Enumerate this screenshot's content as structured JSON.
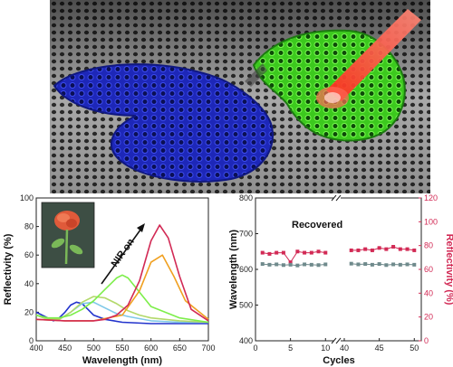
{
  "colors": {
    "blue_wing": "#2a34d6",
    "green_wing": "#49e82b",
    "laser": "#ff3b2f",
    "substrate": "#8d8d8d",
    "reflectivity_axis": "#d22a55",
    "wavelength_series": "#6f8a8c"
  },
  "chart_data": [
    {
      "type": "line",
      "xlabel": "Wavelength (nm)",
      "ylabel": "Reflectivity (%)",
      "xlim": [
        400,
        700
      ],
      "ylim": [
        0,
        100
      ],
      "xticks": [
        "400",
        "450",
        "500",
        "550",
        "600",
        "650",
        "700"
      ],
      "yticks": [
        "0",
        "20",
        "40",
        "60",
        "80",
        "100"
      ],
      "annotation": "NIR on",
      "inset": "rose-photo",
      "series": [
        {
          "color": "#2233cc",
          "x": [
            400,
            420,
            430,
            440,
            450,
            460,
            470,
            480,
            490,
            500,
            520,
            550,
            600,
            650,
            700
          ],
          "y": [
            20,
            16,
            14,
            16,
            20,
            25,
            27,
            26,
            22,
            18,
            15,
            13,
            12,
            12,
            12
          ]
        },
        {
          "color": "#7ec8e8",
          "x": [
            400,
            420,
            440,
            460,
            480,
            500,
            520,
            540,
            560,
            600,
            650,
            700
          ],
          "y": [
            18,
            15,
            15,
            20,
            26,
            27,
            23,
            19,
            17,
            14,
            13,
            13
          ]
        },
        {
          "color": "#b3d96b",
          "x": [
            400,
            420,
            440,
            460,
            480,
            500,
            520,
            540,
            560,
            580,
            600,
            650,
            700
          ],
          "y": [
            18,
            15,
            15,
            20,
            27,
            31,
            30,
            26,
            21,
            18,
            16,
            14,
            13
          ]
        },
        {
          "color": "#7dee4a",
          "x": [
            400,
            420,
            440,
            460,
            480,
            500,
            520,
            540,
            550,
            560,
            580,
            600,
            650,
            700
          ],
          "y": [
            18,
            16,
            16,
            18,
            22,
            28,
            36,
            44,
            46,
            44,
            34,
            24,
            16,
            13
          ]
        },
        {
          "color": "#f0a020",
          "x": [
            400,
            450,
            500,
            550,
            580,
            600,
            620,
            640,
            660,
            700
          ],
          "y": [
            15,
            14,
            14,
            18,
            35,
            55,
            60,
            45,
            28,
            15
          ]
        },
        {
          "color": "#d22a55",
          "x": [
            400,
            450,
            500,
            520,
            540,
            560,
            580,
            600,
            615,
            630,
            650,
            670,
            700
          ],
          "y": [
            15,
            14,
            14,
            15,
            18,
            25,
            42,
            70,
            81,
            72,
            45,
            22,
            14
          ]
        }
      ]
    },
    {
      "type": "scatter",
      "xlabel": "Cycles",
      "ylabel_left": "Wavelength (nm)",
      "ylabel_right": "Reflectivity (%)",
      "annotation": "Recovered",
      "left_ylim": [
        400,
        800
      ],
      "left_yticks": [
        "400",
        "500",
        "600",
        "700",
        "800"
      ],
      "right_ylim": [
        0,
        120
      ],
      "right_yticks": [
        "0",
        "20",
        "40",
        "60",
        "80",
        "100",
        "120"
      ],
      "x_segments": [
        {
          "xlim": [
            0,
            11
          ],
          "xticks": [
            "0",
            "5",
            "10"
          ]
        },
        {
          "xlim": [
            40,
            51
          ],
          "xticks": [
            "40",
            "45",
            "50"
          ]
        }
      ],
      "series": [
        {
          "name": "Reflectivity",
          "axis": "right",
          "color": "#d22a55",
          "x": [
            1,
            2,
            3,
            4,
            5,
            6,
            7,
            8,
            9,
            10,
            41,
            42,
            43,
            44,
            45,
            46,
            47,
            48,
            49,
            50
          ],
          "y": [
            74,
            73,
            74,
            74,
            66,
            75,
            74,
            74,
            75,
            74,
            76,
            76,
            77,
            76,
            78,
            77,
            79,
            77,
            77,
            76
          ]
        },
        {
          "name": "Wavelength",
          "axis": "left",
          "color": "#6f8a8c",
          "x": [
            1,
            2,
            3,
            4,
            5,
            6,
            7,
            8,
            9,
            10,
            41,
            42,
            43,
            44,
            45,
            46,
            47,
            48,
            49,
            50
          ],
          "y": [
            615,
            613,
            614,
            612,
            613,
            611,
            614,
            613,
            612,
            614,
            616,
            614,
            615,
            613,
            615,
            612,
            614,
            613,
            614,
            613
          ]
        }
      ]
    }
  ]
}
